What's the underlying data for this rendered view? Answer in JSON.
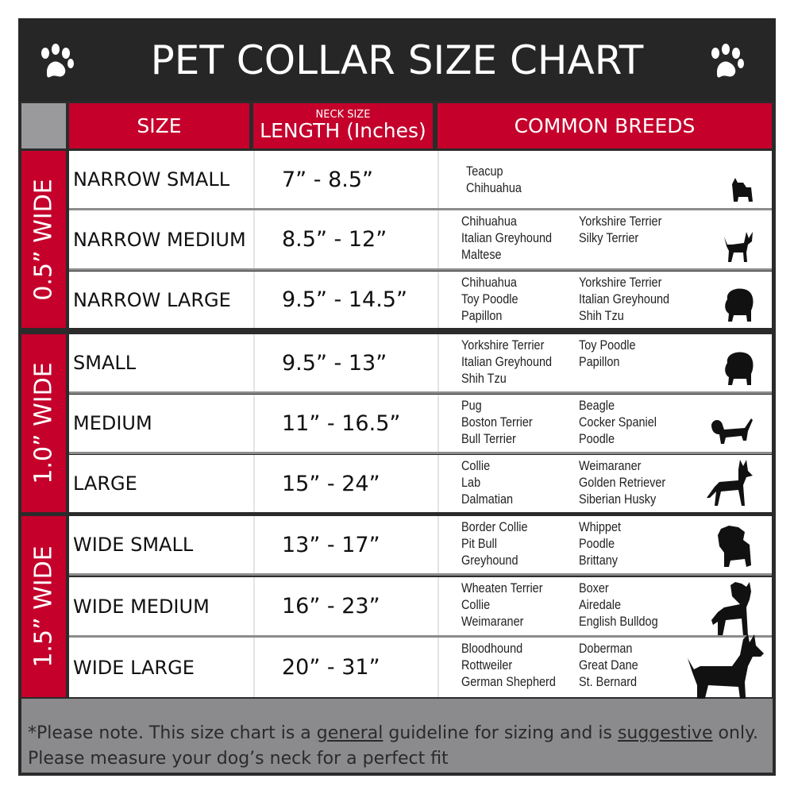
{
  "title": "PET COLLAR SIZE CHART",
  "icons": {
    "left": "paw-icon",
    "right": "paw-icon"
  },
  "colors": {
    "accent": "#c4002b",
    "dark": "#262626",
    "footer": "#8b8b8d"
  },
  "header": {
    "size": "SIZE",
    "length_small": "NECK SIZE",
    "length": "LENGTH (Inches)",
    "breeds": "COMMON BREEDS"
  },
  "groups": [
    {
      "label": "0.5” WIDE"
    },
    {
      "label": "1.0” WIDE"
    },
    {
      "label": "1.5” WIDE"
    }
  ],
  "rows": [
    {
      "size": "NARROW SMALL",
      "length": "7” - 8.5”",
      "col1": [
        "Teacup",
        "Chihuahua"
      ],
      "col2": [],
      "dog": "yorkie-silhouette-icon"
    },
    {
      "size": "NARROW MEDIUM",
      "length": "8.5” - 12”",
      "col1": [
        "Chihuahua",
        "Italian Greyhound",
        "Maltese"
      ],
      "col2": [
        "Yorkshire Terrier",
        "Silky Terrier"
      ],
      "dog": "chihuahua-silhouette-icon"
    },
    {
      "size": "NARROW LARGE",
      "length": "9.5” - 14.5”",
      "col1": [
        "Chihuahua",
        "Toy Poodle",
        "Papillon"
      ],
      "col2": [
        "Yorkshire Terrier",
        "Italian Greyhound",
        "Shih Tzu"
      ],
      "dog": "pomeranian-silhouette-icon"
    },
    {
      "size": "SMALL",
      "length": "9.5” - 13”",
      "col1": [
        "Yorkshire Terrier",
        "Italian Greyhound",
        "Shih Tzu"
      ],
      "col2": [
        "Toy Poodle",
        "Papillon"
      ],
      "dog": "pomeranian-silhouette-icon"
    },
    {
      "size": "MEDIUM",
      "length": "11” - 16.5”",
      "col1": [
        "Pug",
        "Boston Terrier",
        "Bull Terrier"
      ],
      "col2": [
        "Beagle",
        "Cocker Spaniel",
        "Poodle"
      ],
      "dog": "dachshund-silhouette-icon"
    },
    {
      "size": "LARGE",
      "length": "15” - 24”",
      "col1": [
        "Collie",
        "Lab",
        "Dalmatian"
      ],
      "col2": [
        "Weimaraner",
        "Golden Retriever",
        "Siberian Husky"
      ],
      "dog": "shepherd-silhouette-icon"
    },
    {
      "size": "WIDE SMALL",
      "length": "13” - 17”",
      "col1": [
        "Border Collie",
        "Pit Bull",
        "Greyhound"
      ],
      "col2": [
        "Whippet",
        "Poodle",
        "Brittany"
      ],
      "dog": "bulldog-silhouette-icon"
    },
    {
      "size": "WIDE MEDIUM",
      "length": "16” - 23”",
      "col1": [
        "Wheaten Terrier",
        "Collie",
        "Weimaraner"
      ],
      "col2": [
        "Boxer",
        "Airedale",
        "English Bulldog"
      ],
      "dog": "pitbull-silhouette-icon"
    },
    {
      "size": "WIDE LARGE",
      "length": "20” - 31”",
      "col1": [
        "Bloodhound",
        "Rottweiler",
        "German Shepherd"
      ],
      "col2": [
        "Doberman",
        "Great Dane",
        "St. Bernard"
      ],
      "dog": "doberman-silhouette-icon"
    }
  ],
  "footer": {
    "line1_a": "*Please note. This size chart is a ",
    "line1_general": "general",
    "line1_b": " guideline for sizing and is ",
    "line1_suggestive": "suggestive",
    "line1_c": " only.",
    "line2": "Please measure your dog’s neck for a perfect fit"
  }
}
